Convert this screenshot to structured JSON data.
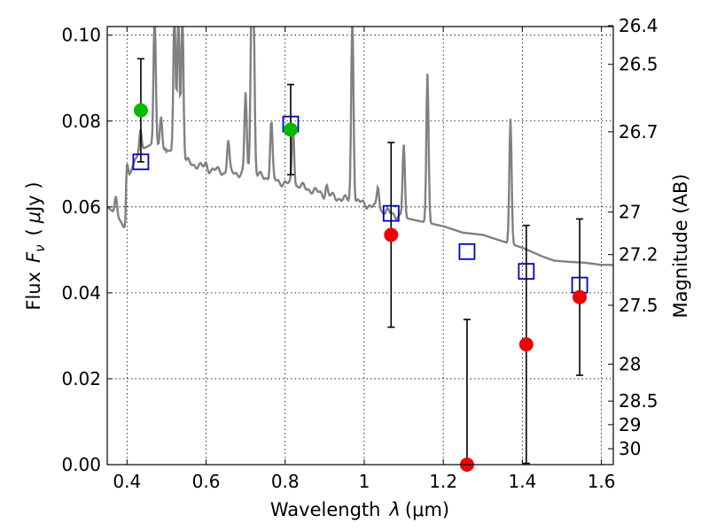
{
  "chart_data": {
    "type": "scatter",
    "xlabel_text": "Wavelength",
    "xlabel_symbol": "λ",
    "xlabel_unit": "(μm)",
    "ylabel_text": "Flux",
    "ylabel_symbol": "F",
    "ylabel_subscript": "ν",
    "ylabel_unit_open": "(",
    "ylabel_unit_mu": "μ",
    "ylabel_unit_rest": "Jy )",
    "y2label": "Magnitude (AB)",
    "xlim": [
      0.35,
      1.63
    ],
    "ylim": [
      0.0,
      0.102
    ],
    "grid": true,
    "xticks": [
      0.4,
      0.6,
      0.8,
      1.0,
      1.2,
      1.4,
      1.6
    ],
    "xtick_labels": [
      "0.4",
      "0.6",
      "0.8",
      "1",
      "1.2",
      "1.4",
      "1.6"
    ],
    "yticks": [
      0.0,
      0.02,
      0.04,
      0.06,
      0.08,
      0.1
    ],
    "ytick_labels": [
      "0.00",
      "0.02",
      "0.04",
      "0.06",
      "0.08",
      "0.10"
    ],
    "y2ticks": [
      {
        "label": "26.4",
        "flux": 0.1022
      },
      {
        "label": "26.5",
        "flux": 0.0932
      },
      {
        "label": "26.7",
        "flux": 0.0775
      },
      {
        "label": "27",
        "flux": 0.0588
      },
      {
        "label": "27.2",
        "flux": 0.0489
      },
      {
        "label": "27.5",
        "flux": 0.0371
      },
      {
        "label": "28",
        "flux": 0.0234
      },
      {
        "label": "28.5",
        "flux": 0.0148
      },
      {
        "label": "29",
        "flux": 0.0093
      },
      {
        "label": "30",
        "flux": 0.0037
      }
    ],
    "colors": {
      "sed": "#808080",
      "green": "#00bb00",
      "red": "#ee0000",
      "model_box": "#0000cc",
      "errorbar": "#000000"
    },
    "series": [
      {
        "kind": "green-points",
        "points": [
          {
            "x": 0.435,
            "y": 0.0825,
            "err": 0.012
          },
          {
            "x": 0.814,
            "y": 0.078,
            "err": 0.0105
          }
        ]
      },
      {
        "kind": "red-points",
        "points": [
          {
            "x": 1.068,
            "y": 0.0535,
            "err": 0.0215
          },
          {
            "x": 1.26,
            "y": 0.0,
            "err": 0.0338
          },
          {
            "x": 1.41,
            "y": 0.028,
            "err": 0.0277
          },
          {
            "x": 1.545,
            "y": 0.039,
            "err": 0.0182
          }
        ]
      },
      {
        "kind": "model-band-fluxes",
        "points": [
          {
            "x": 0.435,
            "y": 0.0705
          },
          {
            "x": 0.814,
            "y": 0.0793
          },
          {
            "x": 1.068,
            "y": 0.0585
          },
          {
            "x": 1.26,
            "y": 0.0496
          },
          {
            "x": 1.41,
            "y": 0.045
          },
          {
            "x": 1.545,
            "y": 0.0418
          }
        ]
      },
      {
        "kind": "sed-model",
        "continuum": [
          [
            0.35,
            0.06
          ],
          [
            0.37,
            0.0585
          ],
          [
            0.385,
            0.0565
          ],
          [
            0.39,
            0.0555
          ],
          [
            0.395,
            0.0548
          ],
          [
            0.3965,
            0.056
          ],
          [
            0.398,
            0.0625
          ],
          [
            0.4,
            0.0655
          ],
          [
            0.42,
            0.071
          ],
          [
            0.44,
            0.0735
          ],
          [
            0.46,
            0.0745
          ],
          [
            0.48,
            0.074
          ],
          [
            0.5,
            0.073
          ],
          [
            0.55,
            0.0705
          ],
          [
            0.6,
            0.069
          ],
          [
            0.65,
            0.068
          ],
          [
            0.7,
            0.0678
          ],
          [
            0.75,
            0.067
          ],
          [
            0.8,
            0.0655
          ],
          [
            0.85,
            0.0645
          ],
          [
            0.9,
            0.0628
          ],
          [
            0.95,
            0.0618
          ],
          [
            1.0,
            0.0608
          ],
          [
            1.05,
            0.059
          ],
          [
            1.1,
            0.0575
          ],
          [
            1.15,
            0.0565
          ],
          [
            1.2,
            0.0555
          ],
          [
            1.25,
            0.054
          ],
          [
            1.3,
            0.0535
          ],
          [
            1.35,
            0.052
          ],
          [
            1.4,
            0.0505
          ],
          [
            1.45,
            0.0485
          ],
          [
            1.48,
            0.0475
          ],
          [
            1.52,
            0.0472
          ],
          [
            1.56,
            0.047
          ],
          [
            1.6,
            0.0465
          ],
          [
            1.63,
            0.0465
          ]
        ],
        "lines": [
          {
            "x": 0.372,
            "peak": 0.0625
          },
          {
            "x": 0.4,
            "peak": 0.07
          },
          {
            "x": 0.434,
            "peak": 0.078
          },
          {
            "x": 0.47,
            "peak": 0.105
          },
          {
            "x": 0.486,
            "peak": 0.081
          },
          {
            "x": 0.502,
            "peak": 0.074
          },
          {
            "x": 0.52,
            "peak": 0.105
          },
          {
            "x": 0.53,
            "peak": 0.105
          },
          {
            "x": 0.54,
            "peak": 0.105
          },
          {
            "x": 0.6,
            "peak": 0.07
          },
          {
            "x": 0.656,
            "peak": 0.0755
          },
          {
            "x": 0.7,
            "peak": 0.0865
          },
          {
            "x": 0.715,
            "peak": 0.105
          },
          {
            "x": 0.72,
            "peak": 0.105
          },
          {
            "x": 0.765,
            "peak": 0.08
          },
          {
            "x": 0.82,
            "peak": 0.079
          },
          {
            "x": 0.905,
            "peak": 0.065
          },
          {
            "x": 0.97,
            "peak": 0.105
          },
          {
            "x": 1.035,
            "peak": 0.065
          },
          {
            "x": 1.1,
            "peak": 0.0745
          },
          {
            "x": 1.16,
            "peak": 0.091
          },
          {
            "x": 1.37,
            "peak": 0.0805
          }
        ]
      }
    ]
  }
}
